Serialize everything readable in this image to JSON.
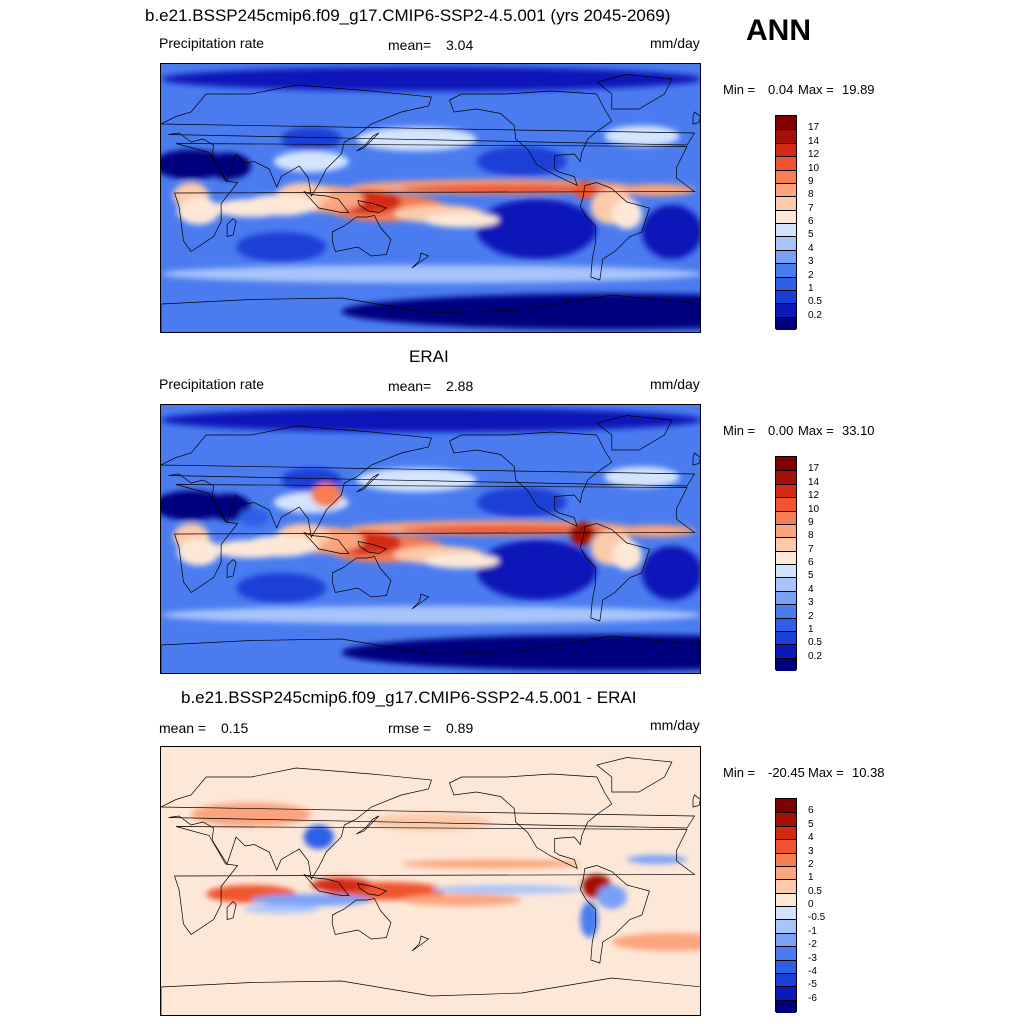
{
  "season": "ANN",
  "colors": {
    "clim_scale": [
      "#00007f",
      "#0b19b8",
      "#1a3fd6",
      "#2f5ee8",
      "#4a7cf0",
      "#7aa0f6",
      "#a8c4fb",
      "#d4e4fd",
      "#fde8d8",
      "#fccaaa",
      "#fba47d",
      "#f77d52",
      "#f0542e",
      "#d42a12",
      "#a50f05",
      "#7f0000"
    ],
    "diff_scale": [
      "#00007f",
      "#0b19b8",
      "#1a3fd6",
      "#2f5ee8",
      "#4a7cf0",
      "#7aa0f6",
      "#a8c4fb",
      "#d4e4fd",
      "#fde8d8",
      "#fccaaa",
      "#fba47d",
      "#f77d52",
      "#f0542e",
      "#d42a12",
      "#a50f05",
      "#7f0000"
    ],
    "coast": "#000000"
  },
  "panels": [
    {
      "title": "b.e21.BSSP245cmip6.f09_g17.CMIP6-SSP2-4.5.001 (yrs 2045-2069)",
      "left_label": "Precipitation rate",
      "mid_label": "mean=",
      "mid_value": "3.04",
      "units": "mm/day",
      "minmax_label": "Min =",
      "min_value": "0.04",
      "max_label": "Max =",
      "max_value": "19.89",
      "ticks": [
        "0.2",
        "0.5",
        "1",
        "2",
        "3",
        "4",
        "5",
        "6",
        "7",
        "8",
        "9",
        "10",
        "12",
        "14",
        "17"
      ],
      "field": "clim"
    },
    {
      "title": "ERAI",
      "left_label": "Precipitation rate",
      "mid_label": "mean=",
      "mid_value": "2.88",
      "units": "mm/day",
      "minmax_label": "Min =",
      "min_value": "0.00",
      "max_label": "Max =",
      "max_value": "33.10",
      "ticks": [
        "0.2",
        "0.5",
        "1",
        "2",
        "3",
        "4",
        "5",
        "6",
        "7",
        "8",
        "9",
        "10",
        "12",
        "14",
        "17"
      ],
      "field": "clim"
    },
    {
      "title": "b.e21.BSSP245cmip6.f09_g17.CMIP6-SSP2-4.5.001 - ERAI",
      "left_label": "mean =",
      "left_value": "0.15",
      "mid_label": "rmse =",
      "mid_value": "0.89",
      "units": "mm/day",
      "minmax_label": "Min =",
      "min_value": "-20.45",
      "max_label": "Max =",
      "max_value": "10.38",
      "ticks": [
        "-6",
        "-5",
        "-4",
        "-3",
        "-2",
        "-1",
        "-0.5",
        "0",
        "0.5",
        "1",
        "2",
        "3",
        "4",
        "5",
        "6"
      ],
      "field": "diff"
    }
  ]
}
